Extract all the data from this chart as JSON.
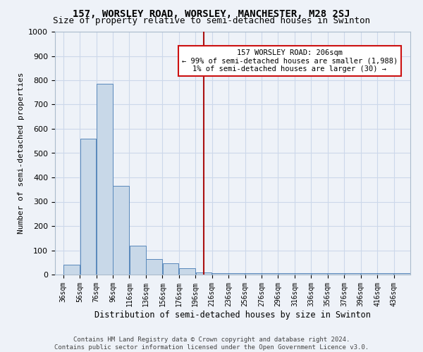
{
  "title": "157, WORSLEY ROAD, WORSLEY, MANCHESTER, M28 2SJ",
  "subtitle": "Size of property relative to semi-detached houses in Swinton",
  "xlabel": "Distribution of semi-detached houses by size in Swinton",
  "ylabel": "Number of semi-detached properties",
  "footer_line1": "Contains HM Land Registry data © Crown copyright and database right 2024.",
  "footer_line2": "Contains public sector information licensed under the Open Government Licence v3.0.",
  "bin_starts": [
    36,
    56,
    76,
    96,
    116,
    136,
    156,
    176,
    196,
    216,
    236,
    256,
    276,
    296,
    316,
    336,
    356,
    376,
    396,
    416,
    436
  ],
  "bin_width": 20,
  "bar_heights": [
    40,
    560,
    785,
    365,
    120,
    65,
    45,
    25,
    10,
    5,
    5,
    5,
    5,
    5,
    5,
    5,
    5,
    5,
    5,
    5,
    5
  ],
  "bar_color": "#c8d8e8",
  "bar_edge_color": "#5888bb",
  "property_size": 206,
  "vline_color": "#aa1111",
  "annotation_box_edge_color": "#cc1111",
  "annotation_line1": "157 WORSLEY ROAD: 206sqm",
  "annotation_line2": "← 99% of semi-detached houses are smaller (1,988)",
  "annotation_line3": "1% of semi-detached houses are larger (30) →",
  "ylim": [
    0,
    1000
  ],
  "yticks": [
    0,
    100,
    200,
    300,
    400,
    500,
    600,
    700,
    800,
    900,
    1000
  ],
  "grid_color": "#ccd8ea",
  "background_color": "#eef2f8",
  "title_fontsize": 10,
  "subtitle_fontsize": 9,
  "ylabel_fontsize": 8,
  "xlabel_fontsize": 8.5,
  "footer_fontsize": 6.5,
  "tick_fontsize": 7
}
